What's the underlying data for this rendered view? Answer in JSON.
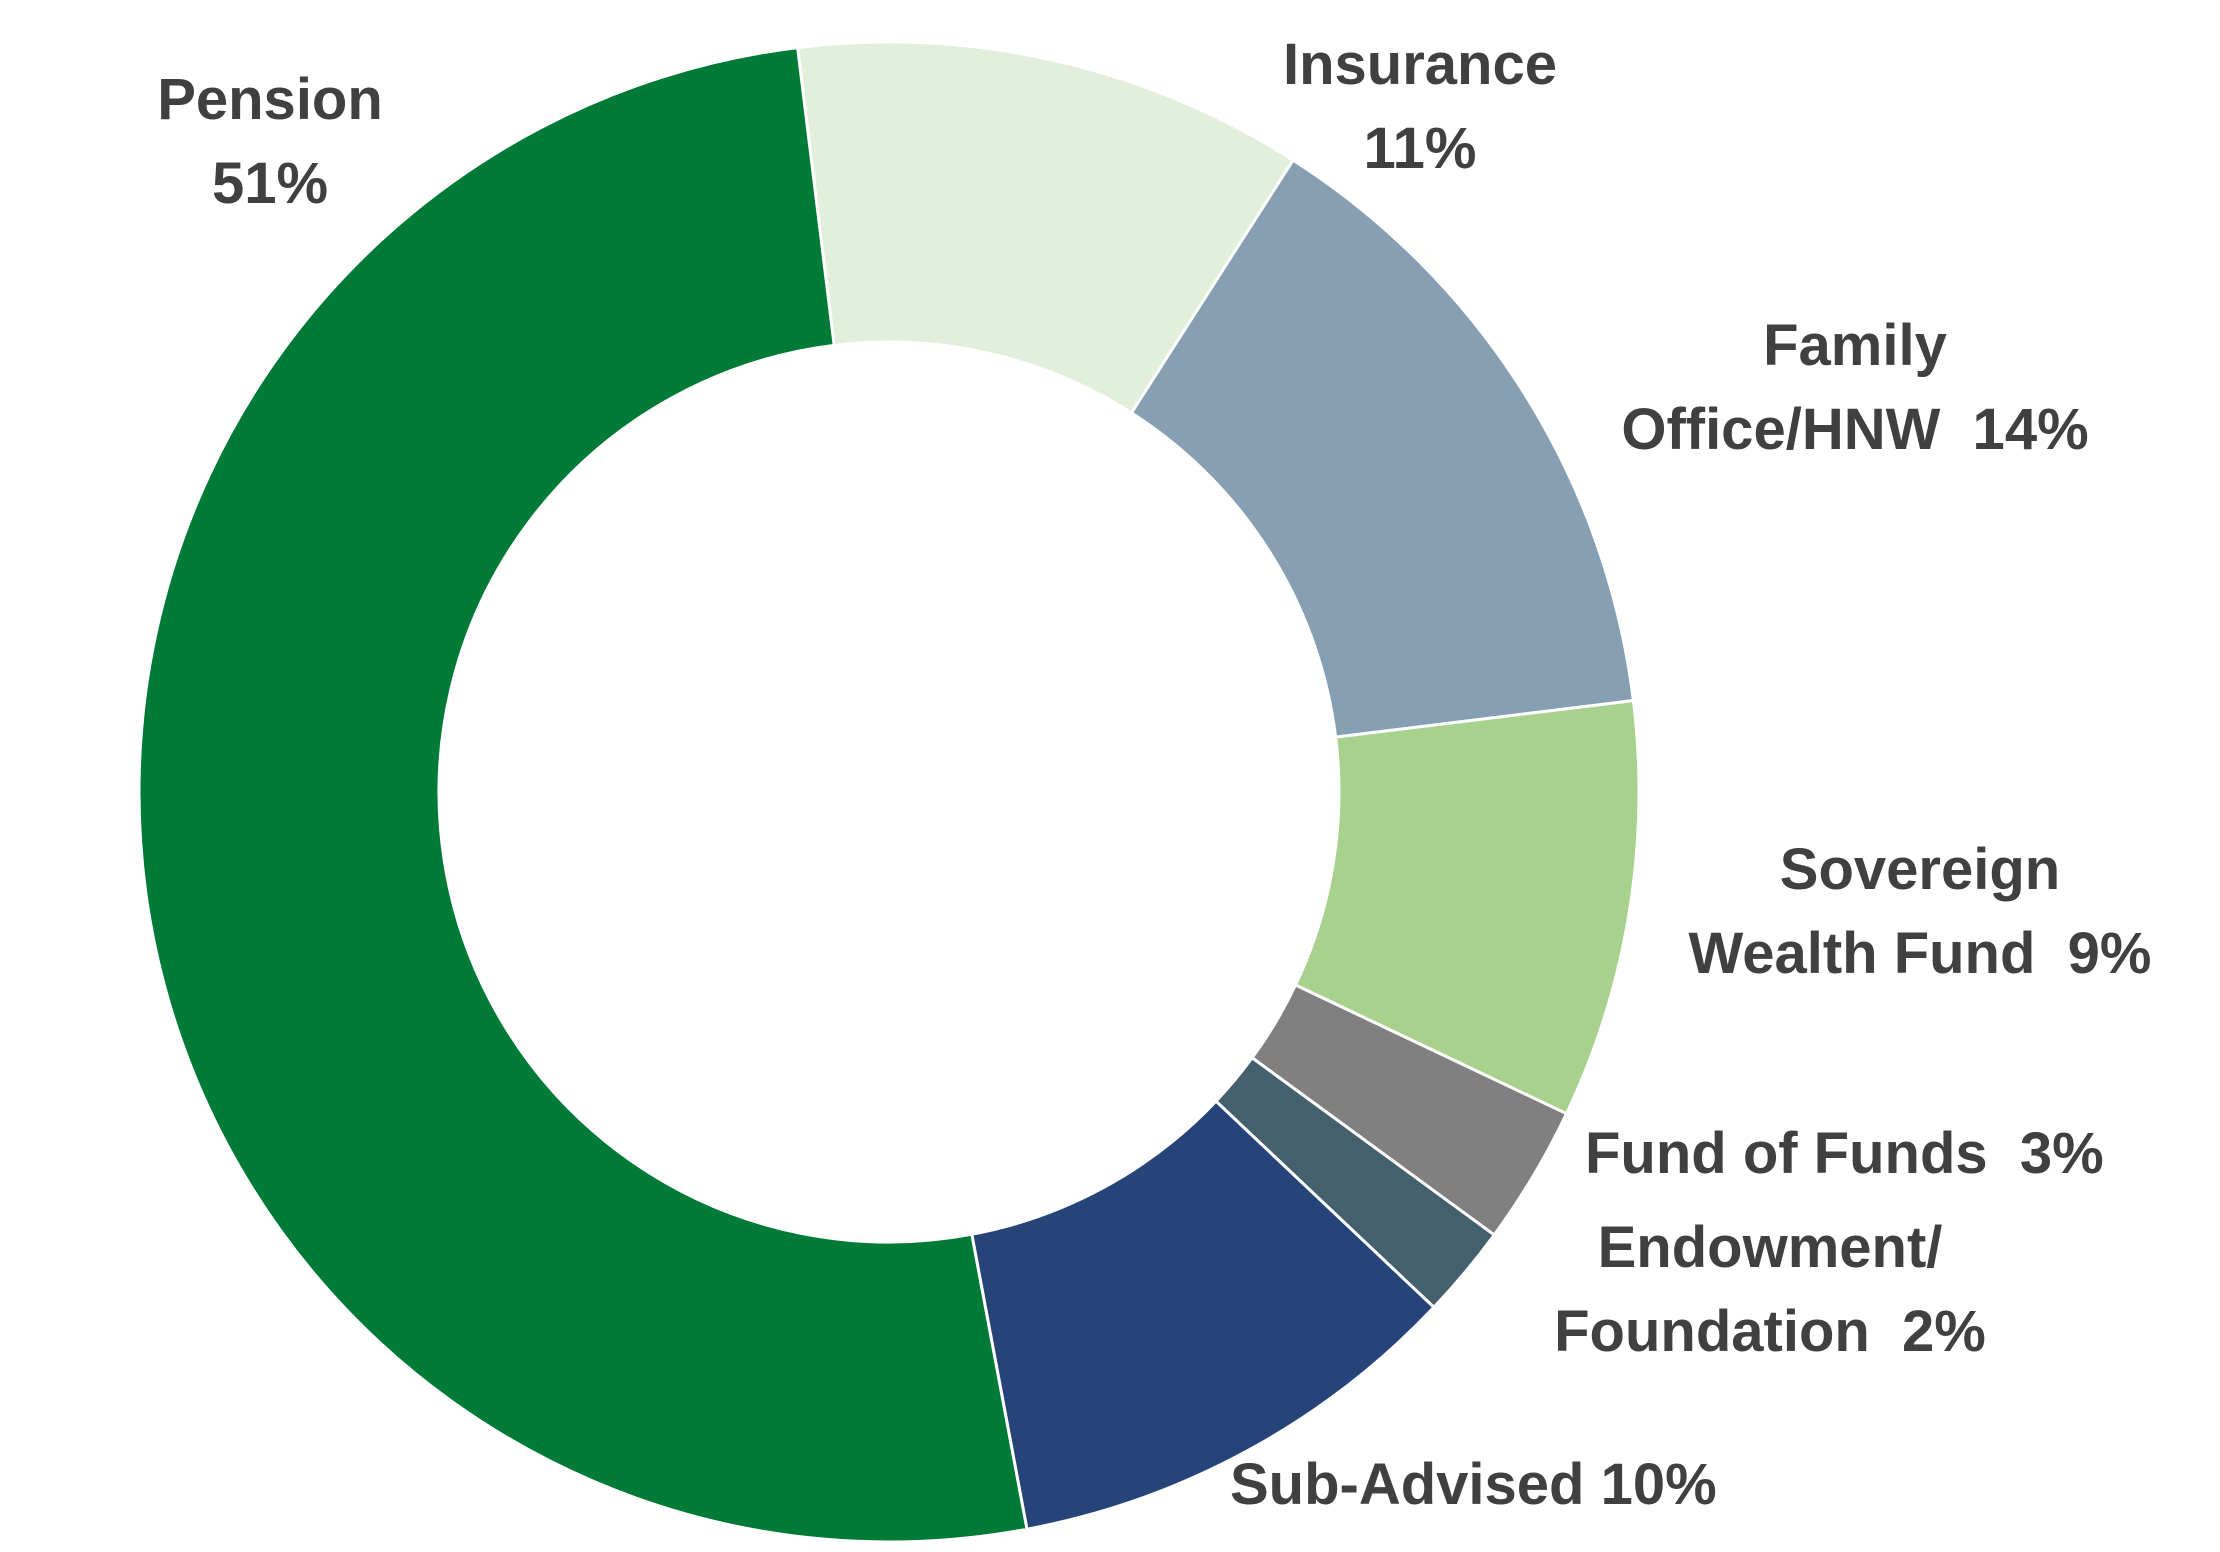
{
  "chart_data": {
    "type": "pie",
    "variant": "donut",
    "title": "",
    "start_angle_deg": -7,
    "slices": [
      {
        "key": "pension",
        "lines": [
          "Pension",
          "51%"
        ],
        "value": 51,
        "color": "#007A37"
      },
      {
        "key": "insurance",
        "lines": [
          "Insurance",
          "11%"
        ],
        "value": 11,
        "color": "#E2EFDA"
      },
      {
        "key": "family",
        "lines": [
          "Family",
          "Office/HNW  14%"
        ],
        "value": 14,
        "color": "#879FB3"
      },
      {
        "key": "sovereign",
        "lines": [
          "Sovereign",
          "Wealth Fund  9%"
        ],
        "value": 9,
        "color": "#A9D18E"
      },
      {
        "key": "fof",
        "lines": [
          "Fund of Funds  3%"
        ],
        "value": 3,
        "color": "#808080"
      },
      {
        "key": "endowment",
        "lines": [
          "Endowment/",
          "Foundation  2%"
        ],
        "value": 2,
        "color": "#44606C"
      },
      {
        "key": "subadvised",
        "lines": [
          "Sub-Advised 10%"
        ],
        "value": 10,
        "color": "#26447A"
      }
    ],
    "slice_order_clockwise": [
      "insurance",
      "family",
      "sovereign",
      "fof",
      "endowment",
      "subadvised",
      "pension"
    ],
    "legend": "none"
  }
}
